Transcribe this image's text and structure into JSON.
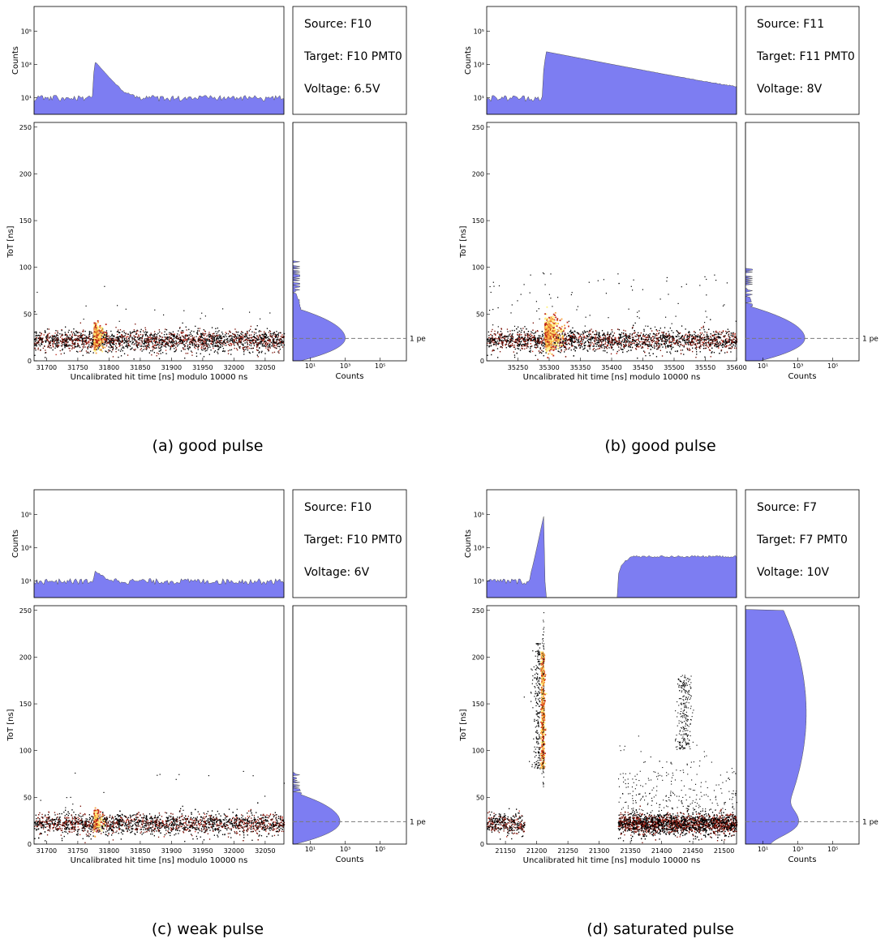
{
  "figure": {
    "colors": {
      "hist": "#7d7df2",
      "hist_edge": "#4d4d4d",
      "heat_low": "#000000",
      "heat_mid": "#c0281a",
      "heat_high": "#fff07a",
      "dash": "#7a7a7a"
    },
    "panels": [
      {
        "caption": "(a) good pulse",
        "info": {
          "source": "Source: F10",
          "target": "Target: F10 PMT0",
          "voltage": "Voltage: 6.5V"
        },
        "pe_label": "1 pe",
        "top_ylabel": "Counts",
        "main_ylabel": "ToT [ns]",
        "main_xlabel": "Uncalibrated hit time [ns] modulo 10000 ns",
        "side_xlabel": "Counts",
        "x_ticks": [
          "31700",
          "31750",
          "31800",
          "31850",
          "31900",
          "31950",
          "32000",
          "32050"
        ],
        "y_ticks": [
          "0",
          "50",
          "100",
          "150",
          "200",
          "250"
        ],
        "top_yticks": [
          "10¹",
          "10³",
          "10⁵"
        ],
        "side_xticks": [
          "10¹",
          "10³",
          "10⁵"
        ]
      },
      {
        "caption": "(b) good pulse",
        "info": {
          "source": "Source: F11",
          "target": "Target: F11 PMT0",
          "voltage": "Voltage: 8V"
        },
        "pe_label": "1 pe",
        "top_ylabel": "Counts",
        "main_ylabel": "ToT [ns]",
        "main_xlabel": "Uncalibrated hit time [ns] modulo 10000 ns",
        "side_xlabel": "Counts",
        "x_ticks": [
          "35250",
          "35300",
          "35350",
          "35400",
          "35450",
          "35500",
          "35550",
          "35600"
        ],
        "y_ticks": [
          "0",
          "50",
          "100",
          "150",
          "200",
          "250"
        ],
        "top_yticks": [
          "10¹",
          "10³",
          "10⁵"
        ],
        "side_xticks": [
          "10¹",
          "10³",
          "10⁵"
        ]
      },
      {
        "caption": "(c) weak pulse",
        "info": {
          "source": "Source: F10",
          "target": "Target: F10 PMT0",
          "voltage": "Voltage: 6V"
        },
        "pe_label": "1 pe",
        "top_ylabel": "Counts",
        "main_ylabel": "ToT [ns]",
        "main_xlabel": "Uncalibrated hit time [ns] modulo 10000 ns",
        "side_xlabel": "Counts",
        "x_ticks": [
          "31700",
          "31750",
          "31800",
          "31850",
          "31900",
          "31950",
          "32000",
          "32050"
        ],
        "y_ticks": [
          "0",
          "50",
          "100",
          "150",
          "200",
          "250"
        ],
        "top_yticks": [
          "10¹",
          "10³",
          "10⁵"
        ],
        "side_xticks": [
          "10¹",
          "10³",
          "10⁵"
        ]
      },
      {
        "caption": "(d) saturated pulse",
        "info": {
          "source": "Source: F7",
          "target": "Target: F7 PMT0",
          "voltage": "Voltage: 10V"
        },
        "pe_label": "1 pe",
        "top_ylabel": "Counts",
        "main_ylabel": "ToT [ns]",
        "main_xlabel": "Uncalibrated hit time [ns] modulo 10000 ns",
        "side_xlabel": "Counts",
        "x_ticks": [
          "21150",
          "21200",
          "21250",
          "21300",
          "21350",
          "21400",
          "21450",
          "21500"
        ],
        "y_ticks": [
          "0",
          "50",
          "100",
          "150",
          "200",
          "250"
        ],
        "top_yticks": [
          "10¹",
          "10³",
          "10⁵"
        ],
        "side_xticks": [
          "10¹",
          "10³",
          "10⁵"
        ]
      }
    ]
  },
  "chart_data": [
    {
      "type": "heatmap",
      "title": "",
      "xlabel": "Uncalibrated hit time [ns] modulo 10000 ns",
      "ylabel": "ToT [ns]",
      "xlim": [
        31680,
        32080
      ],
      "ylim": [
        0,
        255
      ],
      "one_pe_tot_ns": 24,
      "pulse_time_ns": 31778,
      "top_hist": {
        "ylabel": "Counts",
        "log": true,
        "baseline_counts": 10,
        "peak_time_ns": 31778,
        "peak_counts": 1500
      },
      "side_hist": {
        "xlabel": "Counts",
        "log": true,
        "peak_tot_ns": 24,
        "peak_counts": 1000,
        "max_tot_ns": 106
      }
    },
    {
      "type": "heatmap",
      "title": "",
      "xlabel": "Uncalibrated hit time [ns] modulo 10000 ns",
      "ylabel": "ToT [ns]",
      "xlim": [
        35200,
        35600
      ],
      "ylim": [
        0,
        255
      ],
      "one_pe_tot_ns": 24,
      "pulse_time_ns": 35295,
      "top_hist": {
        "ylabel": "Counts",
        "log": true,
        "baseline_counts": 10,
        "peak_time_ns": 35295,
        "peak_counts": 6000
      },
      "side_hist": {
        "xlabel": "Counts",
        "log": true,
        "peak_tot_ns": 24,
        "peak_counts": 2500,
        "max_tot_ns": 100
      }
    },
    {
      "type": "heatmap",
      "title": "",
      "xlabel": "Uncalibrated hit time [ns] modulo 10000 ns",
      "ylabel": "ToT [ns]",
      "xlim": [
        31680,
        32080
      ],
      "ylim": [
        0,
        255
      ],
      "one_pe_tot_ns": 24,
      "pulse_time_ns": 31778,
      "top_hist": {
        "ylabel": "Counts",
        "log": true,
        "baseline_counts": 10,
        "peak_time_ns": 31778,
        "peak_counts": 30
      },
      "side_hist": {
        "xlabel": "Counts",
        "log": true,
        "peak_tot_ns": 24,
        "peak_counts": 500,
        "max_tot_ns": 76
      }
    },
    {
      "type": "heatmap",
      "title": "",
      "xlabel": "Uncalibrated hit time [ns] modulo 10000 ns",
      "ylabel": "ToT [ns]",
      "xlim": [
        21120,
        21520
      ],
      "ylim": [
        0,
        255
      ],
      "one_pe_tot_ns": 24,
      "pulse_time_ns": 21210,
      "top_hist": {
        "ylabel": "Counts",
        "log": true,
        "baseline_counts": 10,
        "peak_time_ns": 21210,
        "peak_counts": 100000,
        "gap_ns": [
          21215,
          21330
        ],
        "late_plateau_counts": 300
      },
      "side_hist": {
        "xlabel": "Counts",
        "log": true,
        "peak_tot_ns": 24,
        "peak_counts": 1000,
        "second_peak_tot_ns": 140,
        "second_peak_counts": 3000,
        "max_tot_ns": 250
      }
    }
  ]
}
